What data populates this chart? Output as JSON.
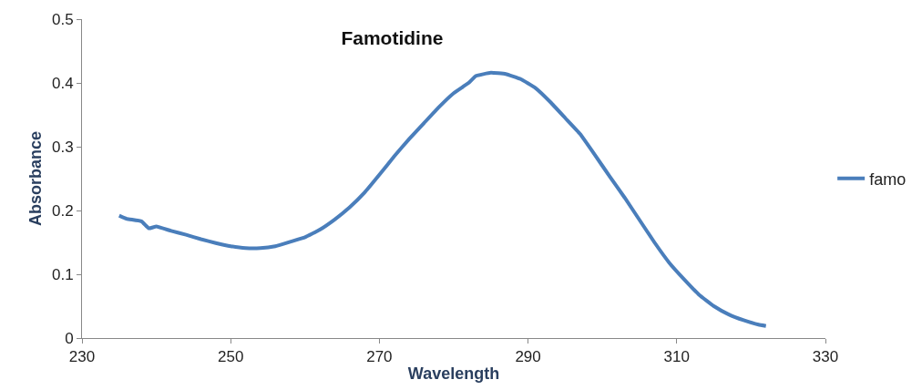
{
  "chart_data": {
    "type": "line",
    "title": "Famotidine",
    "xlabel": "Wavelength",
    "ylabel": "Absorbance",
    "xlim": [
      230,
      330
    ],
    "xticks": [
      230,
      250,
      270,
      290,
      310,
      330
    ],
    "ylim": [
      0,
      0.5
    ],
    "yticks": [
      0,
      0.1,
      0.2,
      0.3,
      0.4,
      0.5
    ],
    "legend": "right",
    "marker": "none",
    "line_style": "solid",
    "series": [
      {
        "name": "famo",
        "color": "#4a7ebb",
        "x": [
          235,
          236,
          238,
          239,
          240,
          242,
          244,
          246,
          248,
          250,
          252,
          254,
          256,
          258,
          260,
          262,
          264,
          266,
          268,
          270,
          272,
          274,
          276,
          278,
          280,
          282,
          283,
          285,
          287,
          289,
          291,
          293,
          295,
          297,
          299,
          301,
          303,
          305,
          307,
          309,
          311,
          313,
          315,
          317,
          319,
          321,
          322
        ],
        "values": [
          0.192,
          0.187,
          0.183,
          0.172,
          0.175,
          0.168,
          0.162,
          0.155,
          0.149,
          0.144,
          0.141,
          0.141,
          0.144,
          0.151,
          0.158,
          0.17,
          0.186,
          0.205,
          0.228,
          0.256,
          0.285,
          0.312,
          0.337,
          0.362,
          0.384,
          0.4,
          0.411,
          0.416,
          0.414,
          0.406,
          0.392,
          0.37,
          0.345,
          0.32,
          0.287,
          0.253,
          0.22,
          0.185,
          0.15,
          0.118,
          0.092,
          0.068,
          0.05,
          0.037,
          0.028,
          0.021,
          0.019
        ]
      }
    ]
  }
}
